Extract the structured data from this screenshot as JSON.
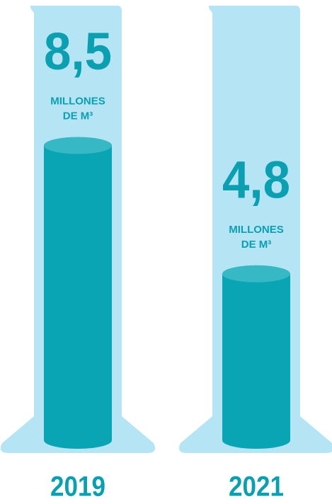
{
  "chart_data": {
    "type": "cylinder",
    "categories": [
      "2019",
      "2021"
    ],
    "values": [
      8.5,
      4.8
    ],
    "value_labels": [
      "8,5",
      "4,8"
    ],
    "unit_lines": [
      "MILLONES",
      "DE M³"
    ],
    "color": "#0aa5b5"
  }
}
